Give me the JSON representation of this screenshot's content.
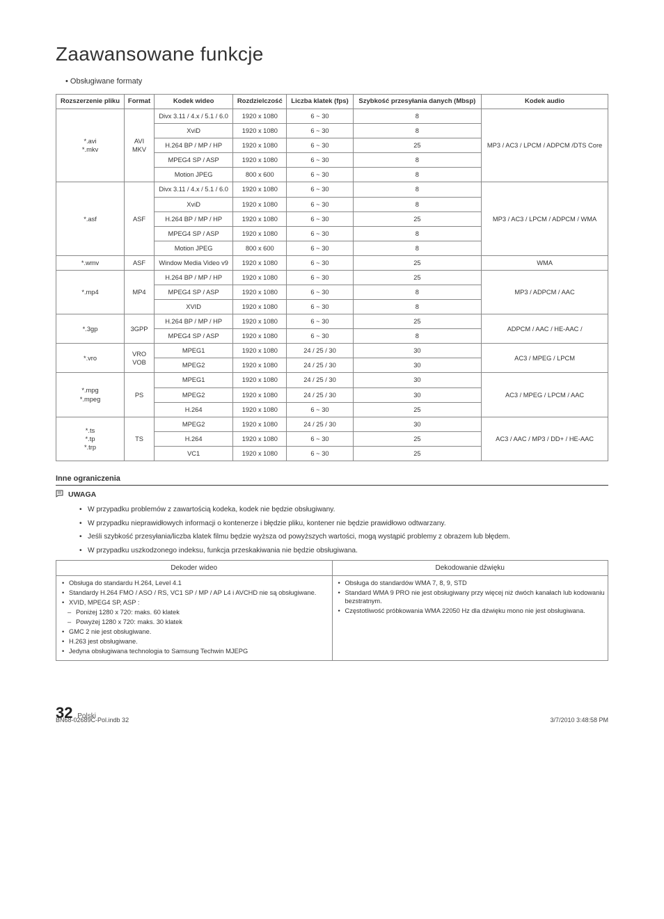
{
  "page": {
    "title": "Zaawansowane funkcje",
    "subtitle": "Obsługiwane formaty"
  },
  "formats_table": {
    "headers": {
      "ext": "Rozszerzenie pliku",
      "format": "Format",
      "vcodec": "Kodek wideo",
      "res": "Rozdzielczość",
      "fps": "Liczba klatek (fps)",
      "bitrate": "Szybkość przesyłania danych (Mbsp)",
      "acodec": "Kodek audio"
    },
    "groups": [
      {
        "ext": "*.avi\n*.mkv",
        "format": "AVI\nMKV",
        "audio": "MP3 / AC3 / LPCM / ADPCM /DTS Core",
        "rows": [
          {
            "vc": "Divx 3.11 / 4.x / 5.1 / 6.0",
            "res": "1920 x 1080",
            "fps": "6 ~ 30",
            "br": "8"
          },
          {
            "vc": "XviD",
            "res": "1920 x 1080",
            "fps": "6 ~ 30",
            "br": "8"
          },
          {
            "vc": "H.264 BP / MP / HP",
            "res": "1920 x 1080",
            "fps": "6 ~ 30",
            "br": "25"
          },
          {
            "vc": "MPEG4 SP / ASP",
            "res": "1920 x 1080",
            "fps": "6 ~ 30",
            "br": "8"
          },
          {
            "vc": "Motion JPEG",
            "res": "800 x 600",
            "fps": "6 ~ 30",
            "br": "8"
          }
        ]
      },
      {
        "ext": "*.asf",
        "format": "ASF",
        "audio": "MP3 / AC3 / LPCM / ADPCM / WMA",
        "rows": [
          {
            "vc": "Divx 3.11 / 4.x / 5.1 / 6.0",
            "res": "1920 x 1080",
            "fps": "6 ~ 30",
            "br": "8"
          },
          {
            "vc": "XviD",
            "res": "1920 x 1080",
            "fps": "6 ~ 30",
            "br": "8"
          },
          {
            "vc": "H.264 BP / MP / HP",
            "res": "1920 x 1080",
            "fps": "6 ~ 30",
            "br": "25"
          },
          {
            "vc": "MPEG4 SP / ASP",
            "res": "1920 x 1080",
            "fps": "6 ~ 30",
            "br": "8"
          },
          {
            "vc": "Motion JPEG",
            "res": "800 x 600",
            "fps": "6 ~ 30",
            "br": "8"
          }
        ]
      },
      {
        "ext": "*.wmv",
        "format": "ASF",
        "audio": "WMA",
        "rows": [
          {
            "vc": "Window Media Video v9",
            "res": "1920 x 1080",
            "fps": "6 ~ 30",
            "br": "25"
          }
        ]
      },
      {
        "ext": "*.mp4",
        "format": "MP4",
        "audio": "MP3 / ADPCM / AAC",
        "rows": [
          {
            "vc": "H.264 BP / MP / HP",
            "res": "1920 x 1080",
            "fps": "6 ~ 30",
            "br": "25"
          },
          {
            "vc": "MPEG4 SP / ASP",
            "res": "1920 x 1080",
            "fps": "6 ~ 30",
            "br": "8"
          },
          {
            "vc": "XVID",
            "res": "1920 x 1080",
            "fps": "6 ~ 30",
            "br": "8"
          }
        ]
      },
      {
        "ext": "*.3gp",
        "format": "3GPP",
        "audio": "ADPCM / AAC / HE-AAC /",
        "rows": [
          {
            "vc": "H.264 BP / MP / HP",
            "res": "1920 x 1080",
            "fps": "6 ~ 30",
            "br": "25"
          },
          {
            "vc": "MPEG4 SP / ASP",
            "res": "1920 x 1080",
            "fps": "6 ~ 30",
            "br": "8"
          }
        ]
      },
      {
        "ext": "*.vro",
        "format": "VRO\nVOB",
        "audio": "AC3 / MPEG / LPCM",
        "rows": [
          {
            "vc": "MPEG1",
            "res": "1920 x 1080",
            "fps": "24 / 25 / 30",
            "br": "30"
          },
          {
            "vc": "MPEG2",
            "res": "1920 x 1080",
            "fps": "24 / 25 / 30",
            "br": "30"
          }
        ]
      },
      {
        "ext": "*.mpg\n*.mpeg",
        "format": "PS",
        "audio": "AC3 / MPEG / LPCM / AAC",
        "rows": [
          {
            "vc": "MPEG1",
            "res": "1920 x 1080",
            "fps": "24 / 25 / 30",
            "br": "30"
          },
          {
            "vc": "MPEG2",
            "res": "1920 x 1080",
            "fps": "24 / 25 / 30",
            "br": "30"
          },
          {
            "vc": "H.264",
            "res": "1920 x 1080",
            "fps": "6 ~ 30",
            "br": "25"
          }
        ]
      },
      {
        "ext": "*.ts\n*.tp\n*.trp",
        "format": "TS",
        "audio": "AC3 / AAC / MP3 / DD+ / HE-AAC",
        "rows": [
          {
            "vc": "MPEG2",
            "res": "1920 x 1080",
            "fps": "24 / 25 / 30",
            "br": "30"
          },
          {
            "vc": "H.264",
            "res": "1920 x 1080",
            "fps": "6 ~ 30",
            "br": "25"
          },
          {
            "vc": "VC1",
            "res": "1920 x 1080",
            "fps": "6 ~ 30",
            "br": "25"
          }
        ]
      }
    ]
  },
  "limitations": {
    "title": "Inne ograniczenia",
    "note_label": "UWAGA",
    "items": [
      "W przypadku problemów z zawartością kodeka, kodek nie będzie obsługiwany.",
      "W przypadku nieprawidłowych informacji o kontenerze i błędzie pliku, kontener nie będzie prawidłowo odtwarzany.",
      "Jeśli szybkość przesyłania/liczba klatek filmu będzie wyższa od powyższych wartości, mogą wystąpić problemy z obrazem lub błędem.",
      "W przypadku uszkodzonego indeksu, funkcja przeskakiwania nie będzie obsługiwana."
    ]
  },
  "decoders": {
    "video_header": "Dekoder wideo",
    "audio_header": "Dekodowanie dźwięku",
    "video": [
      {
        "t": "Obsługa do standardu H.264, Level 4.1"
      },
      {
        "t": "Standardy H.264 FMO / ASO / RS, VC1 SP / MP / AP L4 i AVCHD nie są obsługiwane."
      },
      {
        "t": "XVID, MPEG4 SP, ASP :"
      },
      {
        "t": "Poniżej 1280 x 720: maks. 60 klatek",
        "dash": true
      },
      {
        "t": "Powyżej 1280 x 720: maks. 30 klatek",
        "dash": true
      },
      {
        "t": "GMC 2 nie jest obsługiwane."
      },
      {
        "t": "H.263 jest obsługiwane."
      },
      {
        "t": "Jedyna obsługiwana technologia to Samsung Techwin MJEPG"
      }
    ],
    "audio": [
      {
        "t": "Obsługa do standardów WMA 7, 8, 9, STD"
      },
      {
        "t": "Standard WMA 9 PRO nie jest obsługiwany przy więcej niż dwóch kanałach lub kodowaniu bezstratnym."
      },
      {
        "t": "Częstotliwość próbkowania WMA 22050 Hz dla dźwięku mono nie jest obsługiwana."
      }
    ]
  },
  "footer": {
    "page_num": "32",
    "lang": "Polski",
    "doc": "BN68-02689C-Pol.indb   32",
    "date": "3/7/2010   3:48:58 PM"
  }
}
